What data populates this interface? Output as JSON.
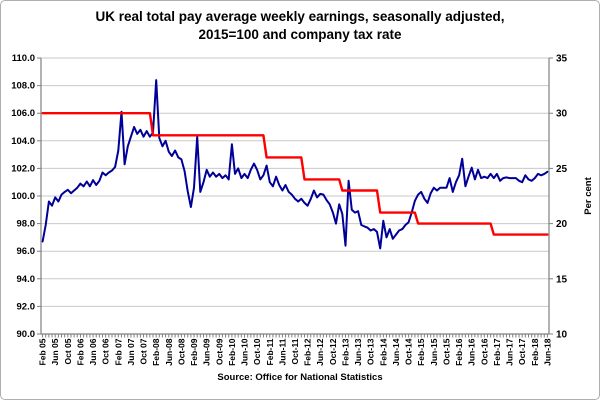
{
  "chart": {
    "title_line1": "UK real total pay average weekly earnings, seasonally adjusted,",
    "title_line2": "2015=100 and company tax rate",
    "source": "Source: Office for National Statistics"
  },
  "chart_data": {
    "type": "line",
    "title": "UK real total pay average weekly earnings, seasonally adjusted, 2015=100 and company tax rate",
    "x_start": "Feb 2005",
    "x_end": "Jun 2018",
    "x_frequency": "monthly",
    "grid": "horizontal",
    "legend": "none",
    "style": {
      "pay_line_color": "#000099",
      "tax_line_color": "#ff0000",
      "gridline_color": "#c9c9c9",
      "axis_color": "#808080",
      "label_color": "#000000",
      "background": "#ffffff"
    },
    "x_tick_labels": [
      "Feb 05",
      "Jun 05",
      "Oct 05",
      "Feb 06",
      "Jun 06",
      "Oct 06",
      "Feb 07",
      "Jun 07",
      "Oct 07",
      "Feb-08",
      "Jun-08",
      "Oct-08",
      "Feb-09",
      "Jun-09",
      "Oct-09",
      "Feb-10",
      "Jun-10",
      "Oct-10",
      "Feb-11",
      "Jun-11",
      "Oct-11",
      "Feb-12",
      "Jun-12",
      "Oct-12",
      "Feb-13",
      "Jun-13",
      "Oct-13",
      "Feb-14",
      "Jun-14",
      "Oct-14",
      "Feb-15",
      "Jun-15",
      "Oct-15",
      "Feb-16",
      "Jun-16",
      "Oct-16",
      "Feb-17",
      "Jun-17",
      "Oct-17",
      "Feb-18",
      "Jun-18"
    ],
    "y_left": {
      "min": 90,
      "max": 110,
      "tick_step": 2,
      "tick_labels": [
        "110.0",
        "108.0",
        "106.0",
        "104.0",
        "102.0",
        "100.0",
        "98.0",
        "96.0",
        "94.0",
        "92.0",
        "90.0"
      ]
    },
    "y_right": {
      "label": "Per cent",
      "min": 10,
      "max": 35,
      "tick_step": 5,
      "tick_labels": [
        "35",
        "30",
        "25",
        "20",
        "15",
        "10"
      ]
    },
    "series": [
      {
        "name": "UK real total pay average weekly earnings (2015=100)",
        "axis": "left",
        "color": "#000099",
        "values": [
          96.7,
          97.9,
          99.6,
          99.3,
          99.9,
          99.6,
          100.1,
          100.3,
          100.45,
          100.2,
          100.4,
          100.6,
          100.9,
          100.7,
          101.05,
          100.7,
          101.15,
          100.8,
          101.1,
          101.7,
          101.5,
          101.7,
          101.85,
          102.1,
          103.3,
          106.1,
          102.3,
          103.6,
          104.3,
          105.0,
          104.5,
          104.8,
          104.3,
          104.7,
          104.3,
          104.6,
          108.4,
          104.2,
          103.6,
          104.0,
          103.2,
          102.9,
          103.3,
          102.8,
          102.65,
          101.8,
          100.35,
          99.2,
          100.6,
          104.3,
          100.3,
          101.0,
          101.9,
          101.4,
          101.7,
          101.4,
          101.6,
          101.3,
          101.5,
          101.2,
          103.75,
          101.6,
          102.0,
          101.3,
          101.6,
          101.3,
          101.9,
          102.35,
          101.9,
          101.2,
          101.5,
          102.2,
          101.0,
          100.7,
          101.4,
          100.8,
          100.4,
          100.8,
          100.3,
          100.1,
          99.8,
          99.6,
          99.8,
          99.5,
          99.3,
          99.8,
          100.4,
          99.9,
          100.15,
          100.1,
          99.7,
          99.4,
          98.8,
          98.0,
          99.4,
          98.7,
          96.4,
          101.1,
          99.0,
          98.8,
          98.9,
          97.9,
          97.8,
          97.7,
          97.5,
          97.6,
          97.4,
          96.2,
          98.2,
          97.0,
          97.6,
          96.9,
          97.2,
          97.5,
          97.6,
          97.9,
          98.1,
          98.8,
          99.65,
          100.1,
          100.3,
          99.8,
          99.5,
          100.2,
          100.6,
          100.4,
          100.6,
          100.6,
          100.6,
          101.3,
          100.3,
          101.0,
          101.5,
          102.7,
          100.7,
          101.4,
          102.05,
          101.2,
          101.9,
          101.3,
          101.4,
          101.3,
          101.6,
          101.3,
          101.6,
          101.1,
          101.3,
          101.35,
          101.3,
          101.3,
          101.3,
          101.1,
          101.0,
          101.5,
          101.2,
          101.1,
          101.3,
          101.6,
          101.5,
          101.6,
          101.75
        ]
      },
      {
        "name": "Company tax rate",
        "axis": "right",
        "color": "#ff0000",
        "steps": [
          {
            "from": "Feb 2005",
            "month_index": 0,
            "rate": 30
          },
          {
            "from": "Jan 2008",
            "month_index": 35,
            "rate": 28
          },
          {
            "from": "Jan 2011",
            "month_index": 71,
            "rate": 26
          },
          {
            "from": "Jan 2012",
            "month_index": 83,
            "rate": 24
          },
          {
            "from": "Jan 2013",
            "month_index": 95,
            "rate": 23
          },
          {
            "from": "Jan 2014",
            "month_index": 107,
            "rate": 21
          },
          {
            "from": "Jan 2015",
            "month_index": 119,
            "rate": 20
          },
          {
            "from": "Jan 2017",
            "month_index": 143,
            "rate": 19
          }
        ]
      }
    ]
  }
}
